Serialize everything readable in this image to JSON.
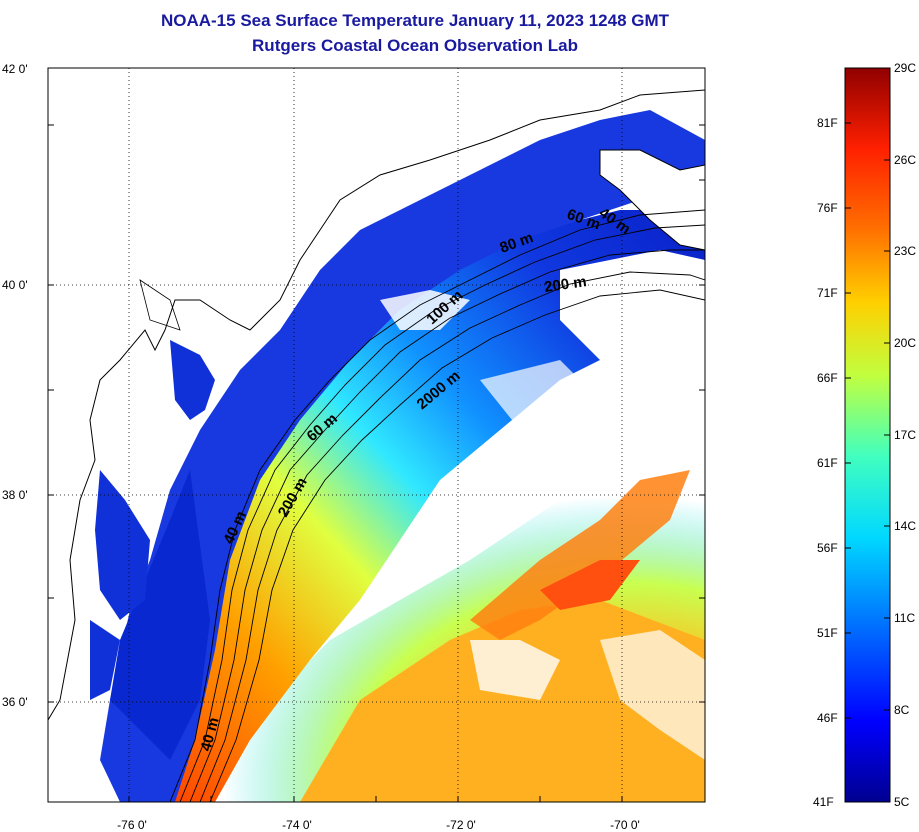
{
  "title": "NOAA-15 Sea Surface Temperature January 11, 2023 1248 GMT",
  "subtitle": "Rutgers Coastal Ocean Observation Lab",
  "axes": {
    "lat_labels": [
      "42 0'",
      "40 0'",
      "38 0'",
      "36 0'"
    ],
    "lon_labels": [
      "-76 0'",
      "-74 0'",
      "-72 0'",
      "-70 0'"
    ]
  },
  "isobaths": [
    "40 m",
    "60 m",
    "80 m",
    "200 m",
    "100 m",
    "2000 m",
    "60 m",
    "40 m",
    "200 m",
    "40 m"
  ],
  "colorbar": {
    "celsius": [
      "29C",
      "26C",
      "23C",
      "20C",
      "17C",
      "14C",
      "11C",
      "8C",
      "5C"
    ],
    "fahrenheit": [
      "81F",
      "76F",
      "71F",
      "66F",
      "61F",
      "56F",
      "51F",
      "46F",
      "41F"
    ],
    "colors": [
      "#000090",
      "#0000ff",
      "#0070ff",
      "#00d8ff",
      "#40ffc0",
      "#c0ff40",
      "#ffd000",
      "#ff7000",
      "#ff2000",
      "#900000"
    ]
  },
  "colors": {
    "water_blue": "#1e40e0",
    "land": "#ffffff",
    "title": "#1a1aa0"
  }
}
